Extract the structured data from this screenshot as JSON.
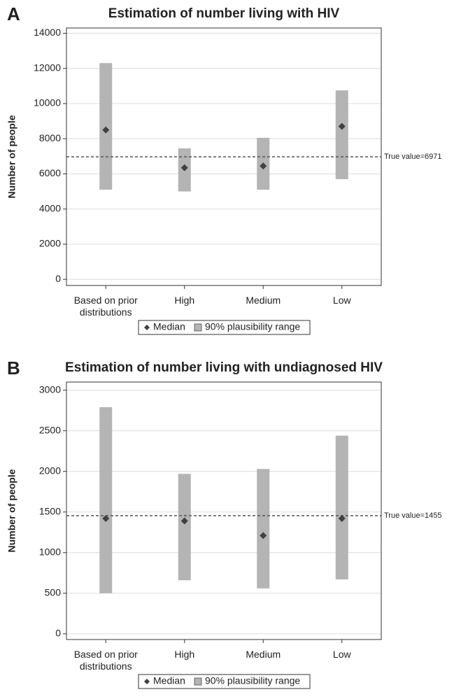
{
  "chart_data": [
    {
      "type": "interval",
      "panel": "A",
      "title": "Estimation of number living with HIV",
      "ylabel": "Number of people",
      "categories": [
        "Based on prior distributions",
        "High",
        "Medium",
        "Low"
      ],
      "series": [
        {
          "name": "Median",
          "color": "#404040",
          "values": [
            8500,
            6350,
            6450,
            8700
          ]
        },
        {
          "name": "90% plausibility range",
          "color": "#b4b4b4",
          "low": [
            5100,
            5000,
            5100,
            5700
          ],
          "high": [
            12300,
            7450,
            8050,
            10750
          ]
        }
      ],
      "reference": {
        "value": 6971,
        "label": "True value=6971"
      },
      "ylim": [
        -350,
        14300
      ],
      "yticks": [
        0,
        2000,
        4000,
        6000,
        8000,
        10000,
        12000,
        14000
      ],
      "grid": true
    },
    {
      "type": "interval",
      "panel": "B",
      "title": "Estimation of number living with undiagnosed HIV",
      "ylabel": "Number of people",
      "categories": [
        "Based on prior distributions",
        "High",
        "Medium",
        "Low"
      ],
      "series": [
        {
          "name": "Median",
          "color": "#404040",
          "values": [
            1420,
            1390,
            1210,
            1420
          ]
        },
        {
          "name": "90% plausibility range",
          "color": "#b4b4b4",
          "low": [
            500,
            660,
            560,
            670
          ],
          "high": [
            2790,
            1970,
            2030,
            2440
          ]
        }
      ],
      "reference": {
        "value": 1455,
        "label": "True value=1455"
      },
      "ylim": [
        -70,
        3100
      ],
      "yticks": [
        0,
        500,
        1000,
        1500,
        2000,
        2500,
        3000
      ],
      "grid": true
    }
  ]
}
